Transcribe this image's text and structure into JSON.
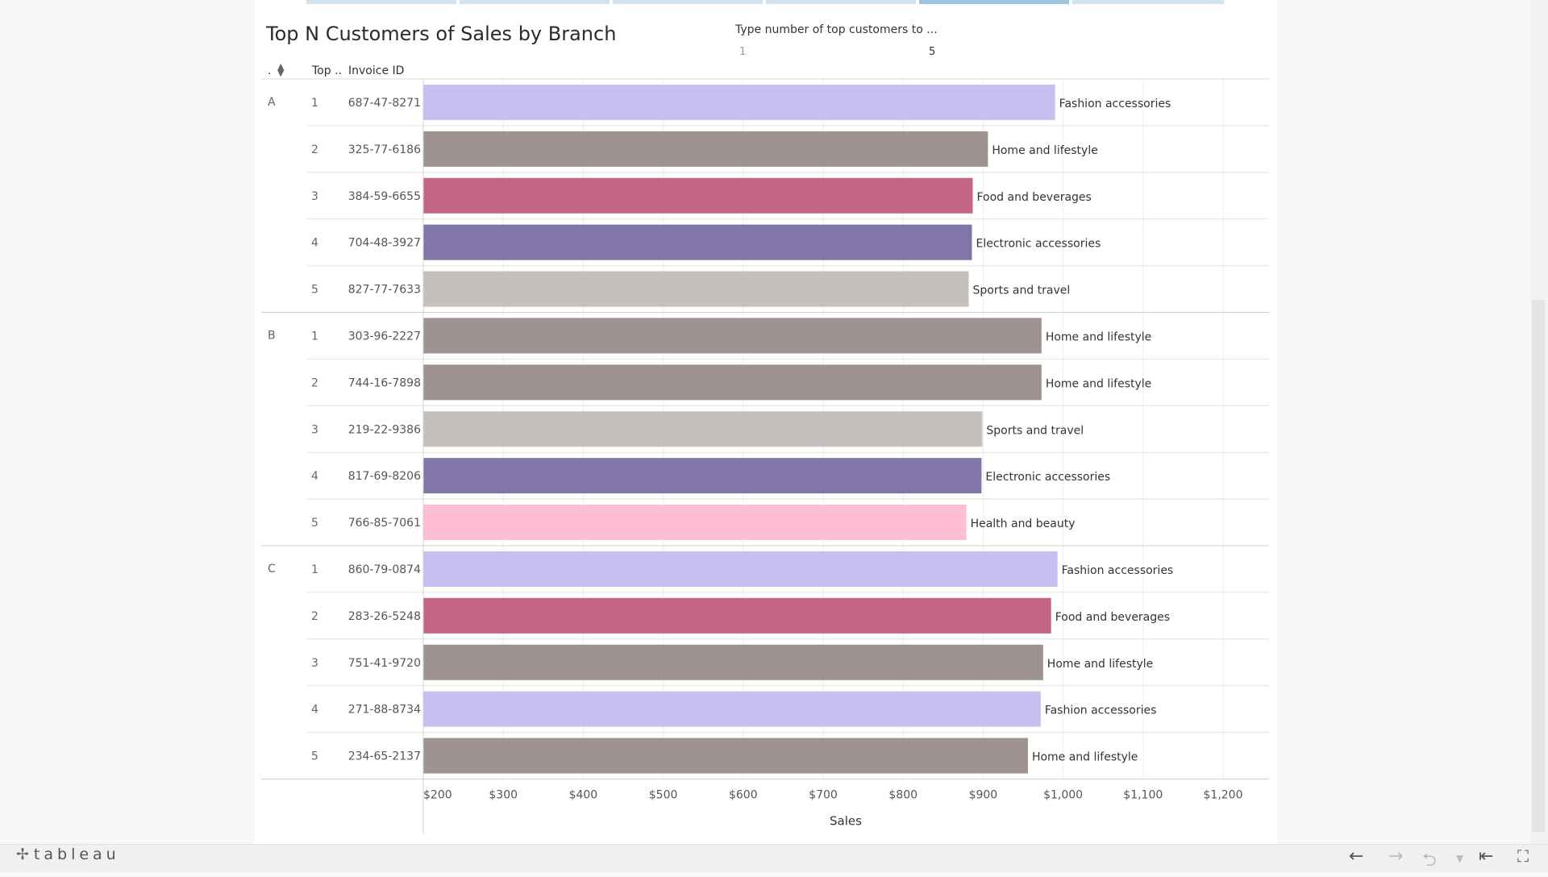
{
  "title": "Top N Customers of Sales by Branch",
  "parameter": {
    "label": "Type number of top customers to ...",
    "min_label": "1",
    "value": "5"
  },
  "headers": {
    "branch": ".",
    "rank": "Top ..",
    "invoice": "Invoice ID"
  },
  "footer": {
    "logo_text": "tableau"
  },
  "colors": {
    "Fashion accessories": "#c6bff0",
    "Home and lifestyle": "#9e9390",
    "Food and beverages": "#c46587",
    "Electronic accessories": "#8276a9",
    "Sports and travel": "#c5c0bd",
    "Health and beauty": "#ffbed2"
  },
  "chart_data": {
    "type": "bar",
    "orientation": "horizontal",
    "xlabel": "Sales",
    "xlim": [
      200,
      1260
    ],
    "ticks": [
      200,
      300,
      400,
      500,
      600,
      700,
      800,
      900,
      1000,
      1100,
      1200
    ],
    "tick_labels": [
      "$200",
      "$300",
      "$400",
      "$500",
      "$600",
      "$700",
      "$800",
      "$900",
      "$1,000",
      "$1,100",
      "$1,200"
    ],
    "grid": true,
    "groups": [
      {
        "branch": "A",
        "rows": [
          {
            "rank": "1",
            "invoice": "687-47-8271",
            "category": "Fashion accessories",
            "value": 990
          },
          {
            "rank": "2",
            "invoice": "325-77-6186",
            "category": "Home and lifestyle",
            "value": 906
          },
          {
            "rank": "3",
            "invoice": "384-59-6655",
            "category": "Food and beverages",
            "value": 887
          },
          {
            "rank": "4",
            "invoice": "704-48-3927",
            "category": "Electronic accessories",
            "value": 886
          },
          {
            "rank": "5",
            "invoice": "827-77-7633",
            "category": "Sports and travel",
            "value": 882
          }
        ]
      },
      {
        "branch": "B",
        "rows": [
          {
            "rank": "1",
            "invoice": "303-96-2227",
            "category": "Home and lifestyle",
            "value": 973
          },
          {
            "rank": "2",
            "invoice": "744-16-7898",
            "category": "Home and lifestyle",
            "value": 973
          },
          {
            "rank": "3",
            "invoice": "219-22-9386",
            "category": "Sports and travel",
            "value": 899
          },
          {
            "rank": "4",
            "invoice": "817-69-8206",
            "category": "Electronic accessories",
            "value": 898
          },
          {
            "rank": "5",
            "invoice": "766-85-7061",
            "category": "Health and beauty",
            "value": 879
          }
        ]
      },
      {
        "branch": "C",
        "rows": [
          {
            "rank": "1",
            "invoice": "860-79-0874",
            "category": "Fashion accessories",
            "value": 993
          },
          {
            "rank": "2",
            "invoice": "283-26-5248",
            "category": "Food and beverages",
            "value": 985
          },
          {
            "rank": "3",
            "invoice": "751-41-9720",
            "category": "Home and lifestyle",
            "value": 975
          },
          {
            "rank": "4",
            "invoice": "271-88-8734",
            "category": "Fashion accessories",
            "value": 972
          },
          {
            "rank": "5",
            "invoice": "234-65-2137",
            "category": "Home and lifestyle",
            "value": 956
          }
        ]
      }
    ]
  }
}
